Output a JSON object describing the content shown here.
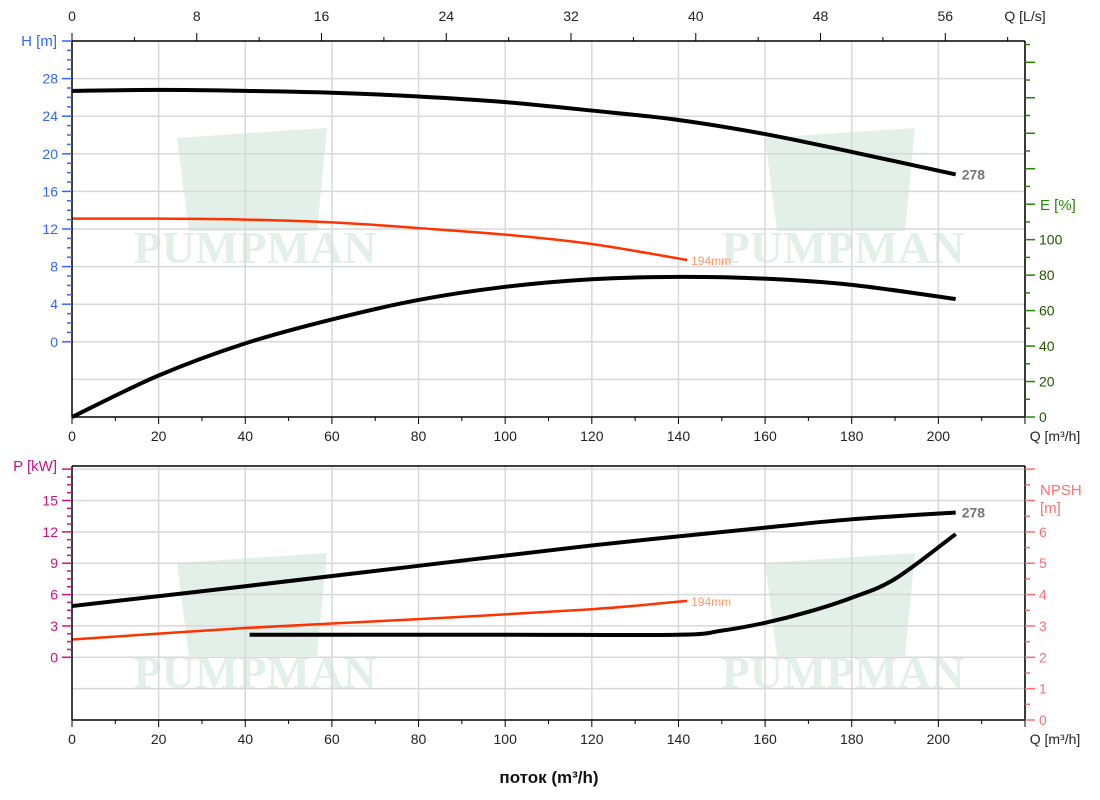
{
  "chart_data": [
    {
      "type": "line",
      "panel": "head-efficiency",
      "x_unit_bottom": "Q [m³/h]",
      "x_unit_top": "Q [L/s]",
      "xlim": [
        0,
        220
      ],
      "x_ticks": [
        0,
        20,
        40,
        60,
        80,
        100,
        120,
        140,
        160,
        180,
        200
      ],
      "x_top_ticks": [
        0,
        8,
        16,
        24,
        32,
        40,
        48,
        56
      ],
      "y_left": {
        "label": "H [m]",
        "ylim": [
          -8,
          32
        ],
        "ticks": [
          0,
          4,
          8,
          12,
          16,
          20,
          24,
          28
        ]
      },
      "y_right": {
        "label": "E [%]",
        "ylim": [
          0,
          212
        ],
        "ticks": [
          0,
          20,
          40,
          60,
          80,
          100
        ]
      },
      "grid": true,
      "series": [
        {
          "name": "278",
          "axis": "H",
          "color": "#000000",
          "x": [
            0,
            20,
            40,
            60,
            80,
            100,
            120,
            140,
            160,
            180,
            204
          ],
          "y": [
            26.7,
            26.8,
            26.7,
            26.5,
            26.1,
            25.5,
            24.6,
            23.6,
            22.1,
            20.2,
            17.8
          ]
        },
        {
          "name": "194mm",
          "axis": "H",
          "color": "#ff3300",
          "x": [
            0,
            20,
            40,
            60,
            80,
            100,
            120,
            142
          ],
          "y": [
            13.1,
            13.1,
            13.0,
            12.7,
            12.1,
            11.4,
            10.4,
            8.7
          ]
        },
        {
          "axis": "E",
          "color": "#000000",
          "x": [
            0,
            20,
            40,
            60,
            80,
            100,
            120,
            140,
            160,
            180,
            204
          ],
          "y": [
            0,
            23.4,
            41.5,
            55,
            66,
            73.4,
            77.7,
            79,
            78,
            74.5,
            66.5
          ]
        }
      ]
    },
    {
      "type": "line",
      "panel": "power-npsh",
      "x_unit_bottom": "Q [m³/h]",
      "xlim": [
        0,
        220
      ],
      "x_ticks": [
        0,
        20,
        40,
        60,
        80,
        100,
        120,
        140,
        160,
        180,
        200
      ],
      "y_left": {
        "label": "P [kW]",
        "ylim": [
          -6,
          18.3
        ],
        "ticks": [
          0,
          3,
          6,
          9,
          12,
          15
        ]
      },
      "y_right": {
        "label_line1": "NPSH",
        "label_line2": "[m]",
        "ylim": [
          0,
          8.1
        ],
        "ticks": [
          0,
          1,
          2,
          3,
          4,
          5,
          6
        ]
      },
      "grid": true,
      "series": [
        {
          "name": "278",
          "axis": "P",
          "color": "#000000",
          "x": [
            0,
            40,
            80,
            120,
            160,
            180,
            204
          ],
          "y": [
            4.9,
            6.8,
            8.75,
            10.7,
            12.4,
            13.2,
            13.85
          ]
        },
        {
          "name": "194mm",
          "axis": "P",
          "color": "#ff3300",
          "x": [
            0,
            40,
            80,
            120,
            142
          ],
          "y": [
            1.7,
            2.8,
            3.65,
            4.6,
            5.4
          ]
        },
        {
          "axis": "NPSH",
          "color": "#000000",
          "x": [
            41,
            100,
            140,
            150,
            160,
            170,
            180,
            190,
            204
          ],
          "y": [
            2.72,
            2.72,
            2.72,
            2.85,
            3.1,
            3.45,
            3.9,
            4.5,
            5.93
          ]
        }
      ]
    }
  ],
  "xlabel": "поток (m³/h)",
  "watermark": "PUMPMAN",
  "colors": {
    "H": "#3366ff",
    "E": "#228800",
    "P": "#cc1188",
    "NPSH": "#ff6f6f",
    "orange": "#ff3300",
    "orange_label": "#ff9966",
    "label_278": "#777777"
  }
}
